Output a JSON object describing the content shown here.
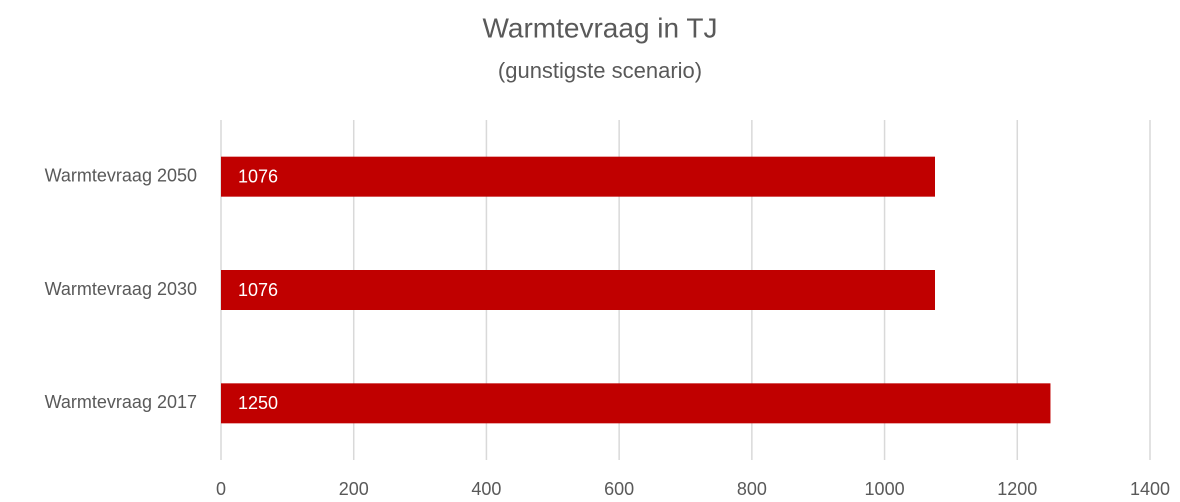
{
  "chart_data": {
    "type": "bar",
    "orientation": "horizontal",
    "title": "Warmtevraag in TJ",
    "subtitle": "(gunstigste scenario)",
    "categories": [
      "Warmtevraag 2017",
      "Warmtevraag 2030",
      "Warmtevraag 2050"
    ],
    "values": [
      1250,
      1076,
      1076
    ],
    "color": "#c00000",
    "xlim": [
      0,
      1400
    ],
    "xticks": [
      0,
      200,
      400,
      600,
      800,
      1000,
      1200,
      1400
    ],
    "grid": true
  }
}
